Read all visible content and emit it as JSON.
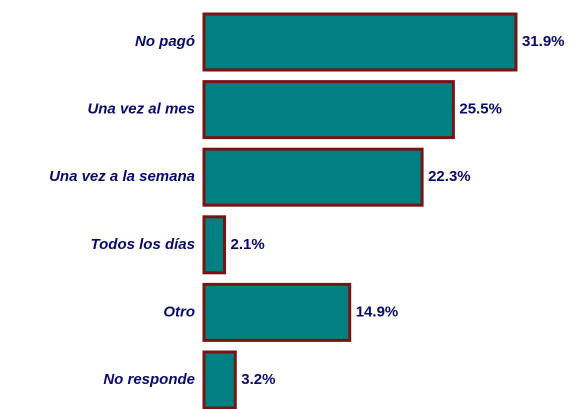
{
  "chart_data": {
    "type": "barh",
    "categories": [
      "No pagó",
      "Una vez al mes",
      "Una vez a la semana",
      "Todos los días",
      "Otro",
      "No responde"
    ],
    "values": [
      31.9,
      25.5,
      22.3,
      2.1,
      14.9,
      3.2
    ],
    "value_labels": [
      "31.9%",
      "25.5%",
      "22.3%",
      "2.1%",
      "14.9%",
      "3.2%"
    ],
    "color": "#008080",
    "edge_color": "#7a1414"
  }
}
